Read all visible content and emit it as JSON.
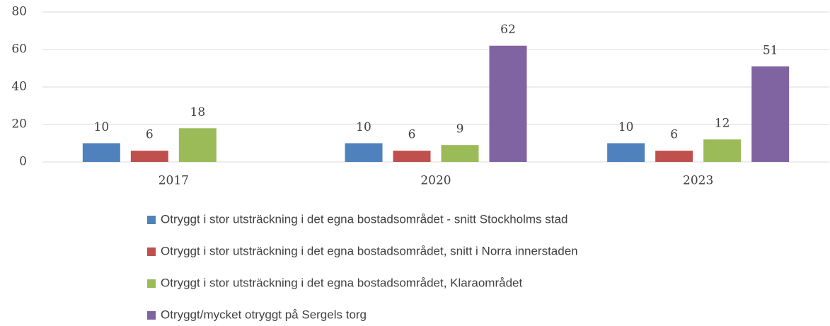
{
  "chart_data": {
    "type": "bar",
    "categories": [
      "2017",
      "2020",
      "2023"
    ],
    "series": [
      {
        "name": "Otryggt i stor utsträckning i det egna bostadsområdet - snitt Stockholms stad",
        "color": "#4f81bd",
        "values": [
          10,
          10,
          10
        ]
      },
      {
        "name": "Otryggt i stor utsträckning i det egna bostadsområdet, snitt i Norra innerstaden",
        "color": "#c0504d",
        "values": [
          6,
          6,
          6
        ]
      },
      {
        "name": "Otryggt i stor utsträckning i det egna bostadsområdet, Klaraområdet",
        "color": "#9bbb59",
        "values": [
          18,
          9,
          12
        ]
      },
      {
        "name": "Otryggt/mycket otryggt på Sergels torg",
        "color": "#8064a2",
        "values": [
          null,
          62,
          51
        ]
      }
    ],
    "ylim": [
      0,
      80
    ],
    "yticks": [
      0,
      20,
      40,
      60,
      80
    ],
    "grid": true,
    "legend": "bottom"
  }
}
